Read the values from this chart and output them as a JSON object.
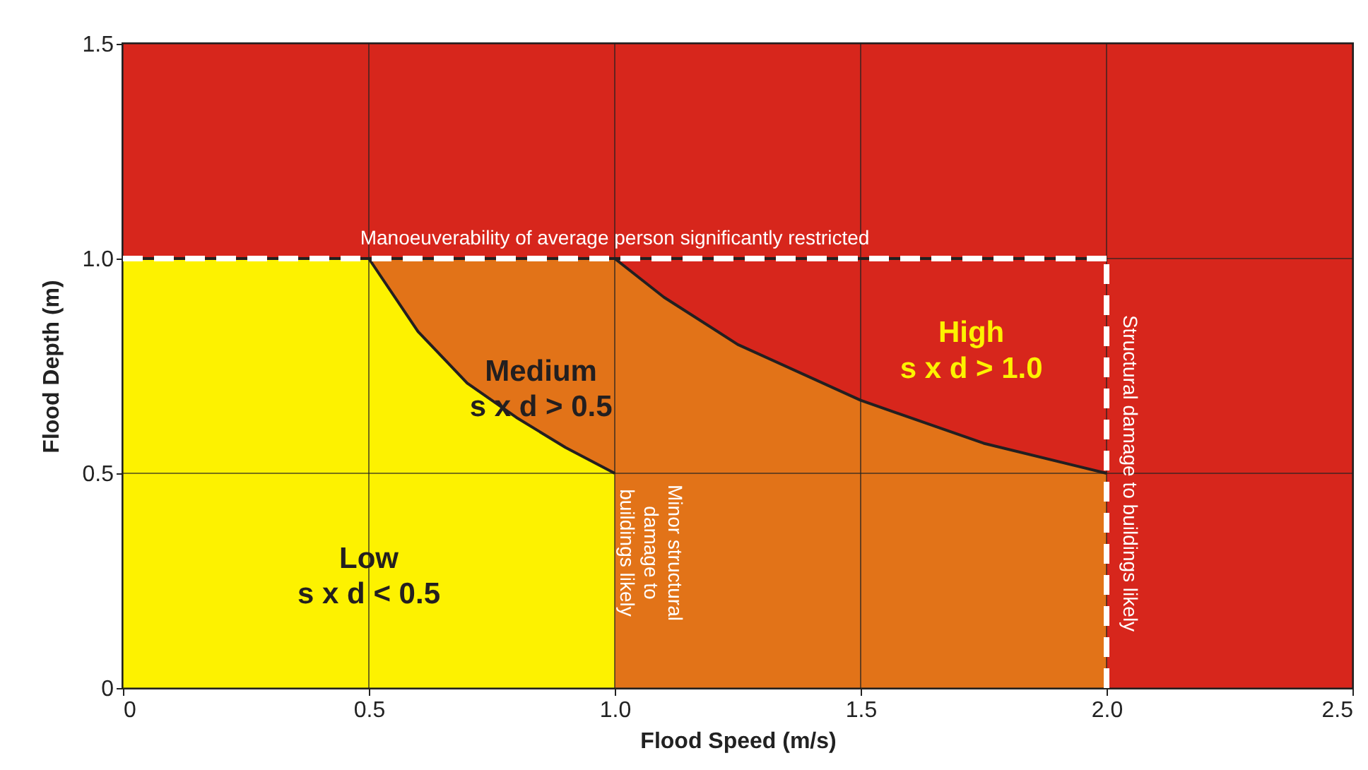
{
  "chart_data": {
    "type": "area",
    "xlabel": "Flood Speed (m/s)",
    "ylabel": "Flood Depth (m)",
    "xlim": [
      0,
      2.5
    ],
    "ylim": [
      0,
      1.5
    ],
    "xticks": [
      0,
      0.5,
      {
        "value": 1,
        "label": "1.0"
      },
      1.5,
      {
        "value": 2,
        "label": "2.0"
      },
      2.5
    ],
    "yticks": [
      0,
      0.5,
      {
        "value": 1,
        "label": "1.0"
      },
      1.5
    ],
    "grid": true,
    "series": [
      {
        "color": "#d7261c",
        "x": [
          1,
          2
        ],
        "values": [
          1,
          1
        ]
      },
      {
        "color": "#e27318",
        "x": [
          0,
          1,
          1.1,
          1.25,
          1.5,
          1.75,
          2
        ],
        "values": [
          1,
          1,
          0.91,
          0.8,
          0.67,
          0.57,
          0.5
        ]
      },
      {
        "color": "#fdf200",
        "x": [
          0,
          0.5,
          0.6,
          0.7,
          0.8,
          0.9,
          1
        ],
        "values": [
          1,
          1,
          0.83,
          0.71,
          0.63,
          0.56,
          0.5
        ]
      }
    ],
    "bands": [
      {
        "axis": "y",
        "from": 1,
        "to": 1.5,
        "color": "#d7261c"
      },
      {
        "axis": "x",
        "from": 2,
        "to": 2.5,
        "color": "#d7261c"
      }
    ],
    "ref_lines": [
      {
        "axis": "y",
        "value": 1,
        "label": "Manoeuverability of average person significantly restricted",
        "color": "#ffffff",
        "line_style": "dashed"
      },
      {
        "axis": "x",
        "value": 2,
        "label": "Structural damage to buildings likely",
        "color": "#ffffff",
        "line_style": "dashed"
      }
    ],
    "annotations": [
      "Low\ns x d < 0.5",
      "Medium\ns x d > 0.5",
      "High\ns x d > 1.0",
      "Minor structural\ndamage to\nbuildings likely"
    ]
  }
}
